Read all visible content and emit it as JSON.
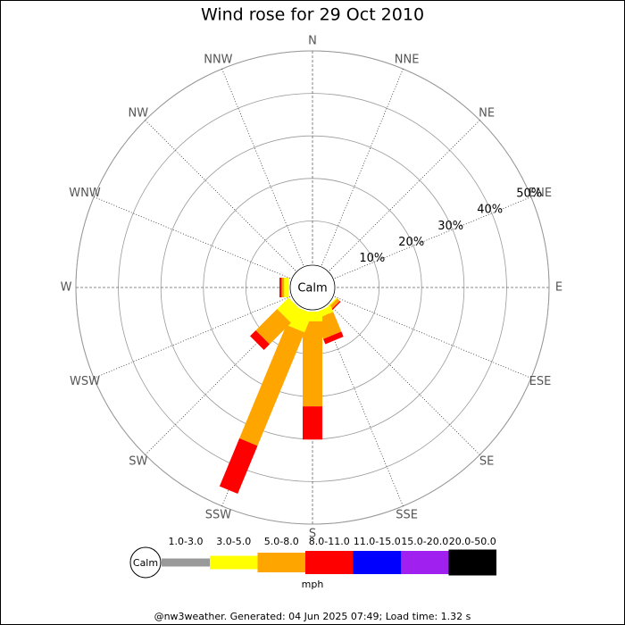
{
  "chart_data": {
    "type": "windrose",
    "title": "Wind rose for 29 Oct 2010",
    "directions": [
      "N",
      "NNE",
      "NE",
      "ENE",
      "E",
      "ESE",
      "SE",
      "SSE",
      "S",
      "SSW",
      "SW",
      "WSW",
      "W",
      "WNW",
      "NW",
      "NNW"
    ],
    "center_label": "Calm",
    "rlim": [
      0,
      50
    ],
    "rticks": [
      {
        "value": 10,
        "label": "10%"
      },
      {
        "value": 20,
        "label": "20%"
      },
      {
        "value": 30,
        "label": "30%"
      },
      {
        "value": 40,
        "label": "40%"
      },
      {
        "value": 50,
        "label": "50%"
      }
    ],
    "series": [
      {
        "name": "1.0-3.0",
        "color": "#999999",
        "values": [
          0,
          0,
          0,
          0,
          0,
          0,
          0,
          0,
          0,
          0,
          0,
          0,
          0,
          0,
          0,
          0
        ]
      },
      {
        "name": "3.0-5.0",
        "color": "#ffff00",
        "values": [
          0,
          0,
          0,
          0,
          0,
          0,
          0.3,
          1.5,
          2.3,
          4.8,
          3.8,
          0,
          1,
          0,
          0,
          0
        ]
      },
      {
        "name": "5.0-8.0",
        "color": "#ffa500",
        "values": [
          0,
          0,
          0,
          0,
          0,
          0,
          0.8,
          5,
          20,
          28.9,
          7.1,
          0,
          0.6,
          0,
          0,
          0
        ]
      },
      {
        "name": "8.0-11.0",
        "color": "#ff0000",
        "values": [
          0,
          0,
          0,
          0,
          0,
          0,
          0.3,
          1.3,
          7.8,
          12.2,
          1.9,
          0,
          0.5,
          0,
          0,
          0
        ]
      },
      {
        "name": "11.0-15.0",
        "color": "#0000ff",
        "values": [
          0,
          0,
          0,
          0,
          0,
          0,
          0,
          0,
          0,
          0,
          0,
          0,
          0,
          0,
          0,
          0
        ]
      },
      {
        "name": "15.0-20.0",
        "color": "#a020f0",
        "values": [
          0,
          0,
          0,
          0,
          0,
          0,
          0,
          0,
          0,
          0,
          0,
          0,
          0,
          0,
          0,
          0
        ]
      },
      {
        "name": "20.0-50.0",
        "color": "#000000",
        "values": [
          0,
          0,
          0,
          0,
          0,
          0,
          0,
          0,
          0,
          0,
          0,
          0,
          0,
          0,
          0,
          0
        ]
      }
    ],
    "legend_calm": "Calm",
    "legend_unit": "mph",
    "footer": "@nw3weather. Generated: 04 Jun 2025 07:49; Load time: 1.32 s"
  }
}
